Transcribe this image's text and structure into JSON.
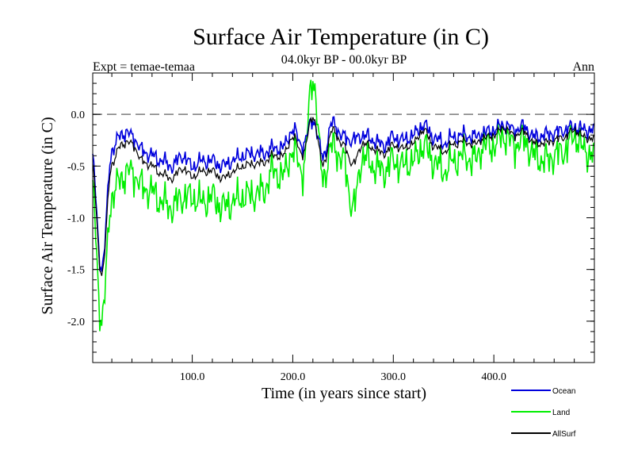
{
  "chart_data": {
    "type": "line",
    "title": "Surface Air Temperature (in C)",
    "subtitle": "04.0kyr BP - 00.0kyr BP",
    "left_label": "Expt = temae-temaa",
    "right_label": "Ann",
    "xlabel": "Time (in years since start)",
    "ylabel": "Surface Air Temperature (in C)",
    "xlim": [
      1,
      500
    ],
    "ylim": [
      -2.4,
      0.4
    ],
    "xticks": [
      100,
      200,
      300,
      400
    ],
    "xtick_labels": [
      "100.0",
      "200.0",
      "300.0",
      "400.0"
    ],
    "yticks": [
      0.0,
      -0.5,
      -1.0,
      -1.5,
      -2.0
    ],
    "ytick_labels": [
      "0.0",
      "-0.5",
      "-1.0",
      "-1.5",
      "-2.0"
    ],
    "reference_line": 0.0,
    "legend_position": "bottom-right",
    "x_anchor_step": 10,
    "series": [
      {
        "name": "Ocean",
        "color": "#0000dd",
        "values": [
          -0.4,
          -1.5,
          -0.35,
          -0.18,
          -0.2,
          -0.35,
          -0.4,
          -0.45,
          -0.5,
          -0.4,
          -0.5,
          -0.45,
          -0.45,
          -0.5,
          -0.45,
          -0.4,
          -0.38,
          -0.38,
          -0.33,
          -0.32,
          -0.15,
          -0.3,
          -0.05,
          -0.4,
          -0.08,
          -0.22,
          -0.25,
          -0.2,
          -0.25,
          -0.3,
          -0.22,
          -0.25,
          -0.2,
          -0.1,
          -0.22,
          -0.28,
          -0.22,
          -0.2,
          -0.22,
          -0.18,
          -0.15,
          -0.1,
          -0.15,
          -0.12,
          -0.22,
          -0.2,
          -0.18,
          -0.15,
          -0.12,
          -0.15,
          -0.15
        ]
      },
      {
        "name": "Land",
        "color": "#00ee00",
        "values": [
          -0.7,
          -2.0,
          -0.8,
          -0.6,
          -0.55,
          -0.7,
          -0.75,
          -0.85,
          -0.9,
          -0.8,
          -0.8,
          -0.85,
          -0.8,
          -0.9,
          -0.85,
          -0.8,
          -0.78,
          -0.75,
          -0.55,
          -0.6,
          -0.35,
          -0.55,
          0.35,
          -0.6,
          -0.3,
          -0.45,
          -0.9,
          -0.4,
          -0.5,
          -0.55,
          -0.45,
          -0.5,
          -0.45,
          -0.3,
          -0.45,
          -0.55,
          -0.45,
          -0.4,
          -0.45,
          -0.3,
          -0.3,
          -0.2,
          -0.3,
          -0.25,
          -0.4,
          -0.45,
          -0.4,
          -0.35,
          -0.2,
          -0.35,
          -0.4
        ]
      },
      {
        "name": "AllSurf",
        "color": "#000000",
        "values": [
          -0.48,
          -1.55,
          -0.48,
          -0.28,
          -0.28,
          -0.45,
          -0.5,
          -0.58,
          -0.62,
          -0.52,
          -0.6,
          -0.55,
          -0.55,
          -0.62,
          -0.56,
          -0.5,
          -0.48,
          -0.47,
          -0.4,
          -0.4,
          -0.22,
          -0.38,
          -0.02,
          -0.48,
          -0.15,
          -0.3,
          -0.48,
          -0.28,
          -0.33,
          -0.38,
          -0.3,
          -0.33,
          -0.28,
          -0.15,
          -0.3,
          -0.36,
          -0.29,
          -0.26,
          -0.29,
          -0.23,
          -0.2,
          -0.13,
          -0.2,
          -0.17,
          -0.28,
          -0.28,
          -0.25,
          -0.22,
          -0.15,
          -0.22,
          -0.24
        ]
      }
    ]
  }
}
